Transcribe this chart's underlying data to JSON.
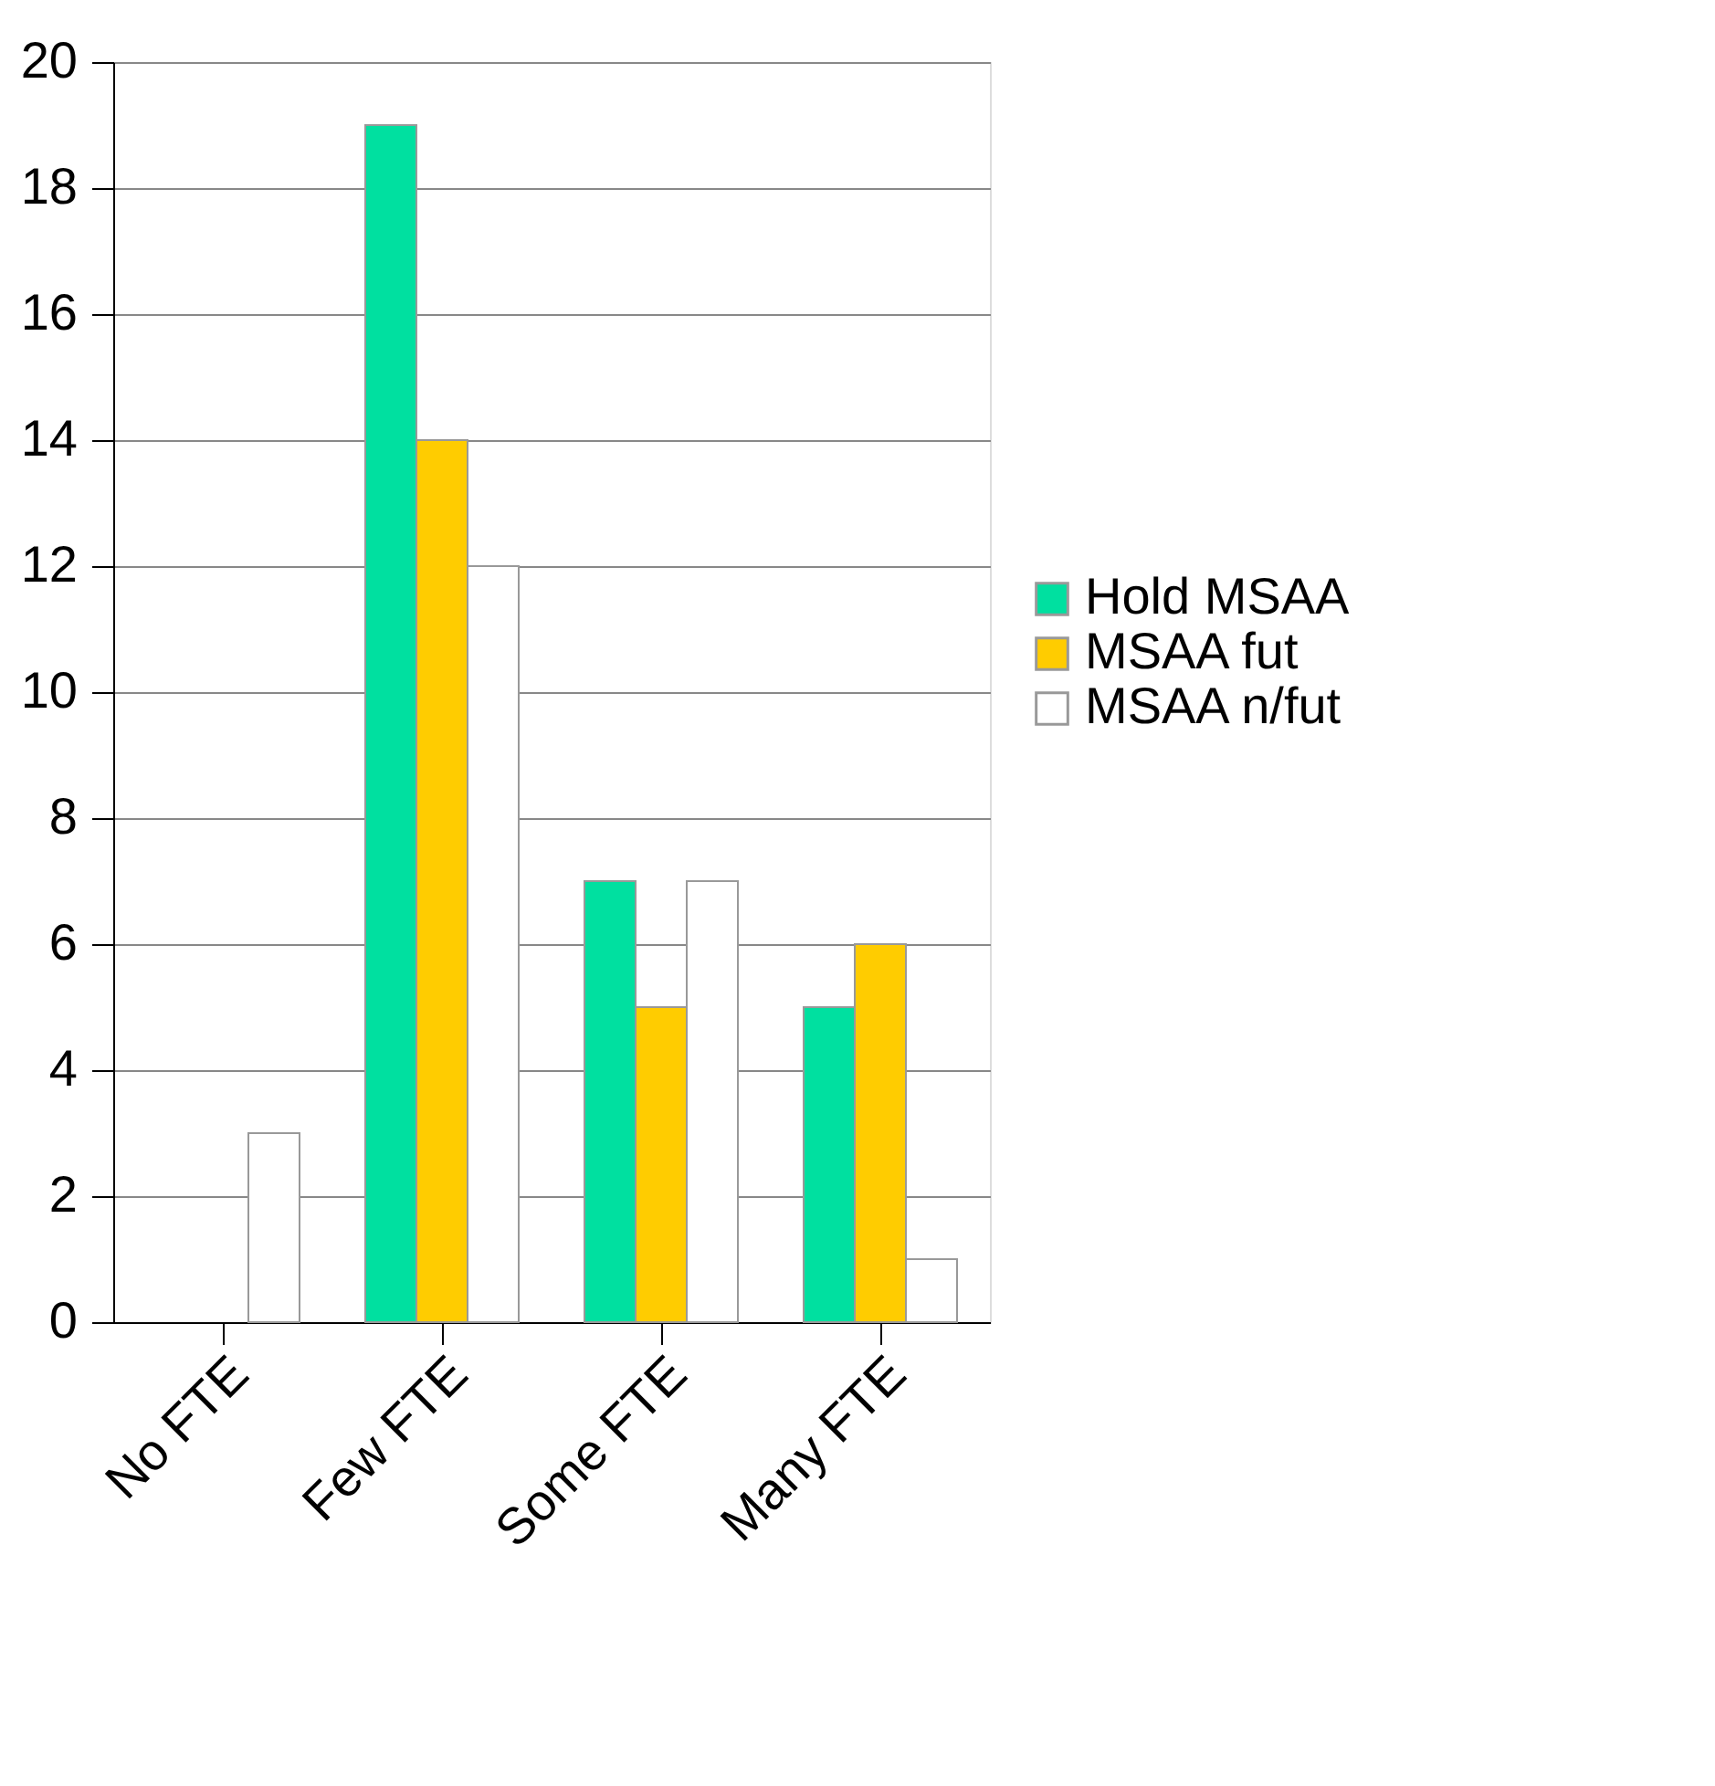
{
  "chart_data": {
    "type": "bar",
    "categories": [
      "No FTE",
      "Few FTE",
      "Some FTE",
      "Many FTE"
    ],
    "series": [
      {
        "name": "Hold MSAA",
        "color": "#00e0a0",
        "values": [
          0,
          19,
          7,
          5
        ]
      },
      {
        "name": "MSAA fut",
        "color": "#ffcc00",
        "values": [
          0,
          14,
          5,
          6
        ]
      },
      {
        "name": "MSAA n/fut",
        "color": "#ffffff",
        "values": [
          3,
          12,
          7,
          1
        ]
      }
    ],
    "ylim": [
      0,
      20
    ],
    "yticks": [
      0,
      2,
      4,
      6,
      8,
      10,
      12,
      14,
      16,
      18,
      20
    ],
    "grid": "y",
    "legend": "right"
  }
}
